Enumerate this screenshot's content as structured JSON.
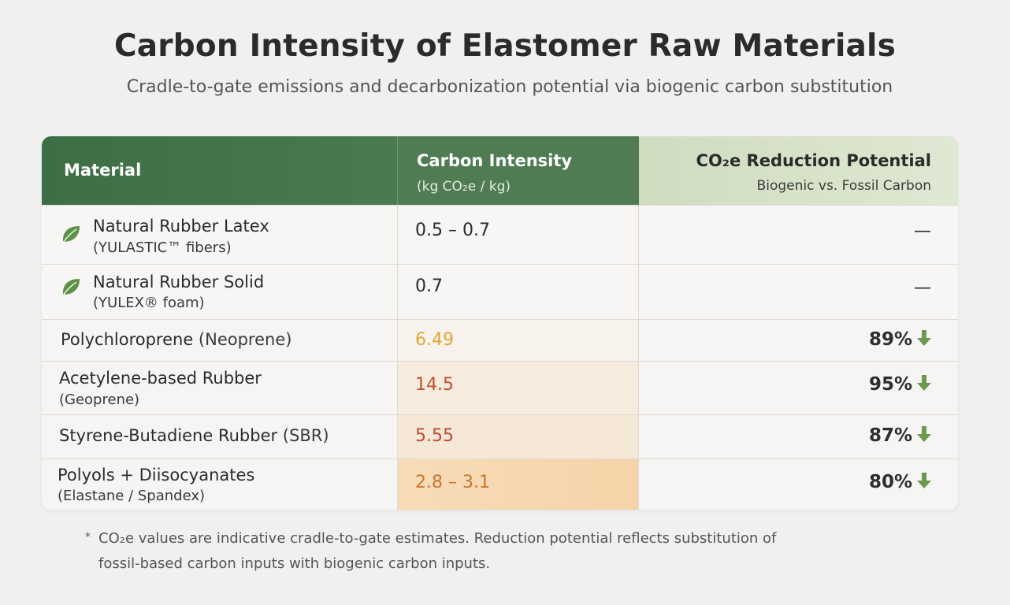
{
  "title": "Carbon Intensity of Elastomer Raw Materials",
  "subtitle": "Cradle-to-gate emissions and decarbonization potential via biogenic carbon substitution",
  "table": {
    "headers": {
      "material": "Material",
      "carbon_intensity": "Carbon Intensity",
      "carbon_intensity_unit": "(kg CO₂e / kg)",
      "reduction": "CO₂e Reduction Potential",
      "reduction_sub": "Biogenic vs. Fossil Carbon"
    },
    "rows": [
      {
        "name": "Natural Rubber Latex",
        "sub": "(YULASTIC™ fibers)",
        "icon": "leaf-icon",
        "carbon_intensity": "0.5 – 0.7",
        "reduction": "—"
      },
      {
        "name": "Natural Rubber Solid",
        "sub": "(YULEX® foam)",
        "icon": "leaf-icon",
        "carbon_intensity": "0.7",
        "reduction": "—"
      },
      {
        "name": "Polychloroprene",
        "name_suffix": " (Neoprene)",
        "carbon_intensity": "6.49",
        "reduction": "89%"
      },
      {
        "name": "Acetylene-based Rubber",
        "sub": "(Geoprene)",
        "carbon_intensity": "14.5",
        "reduction": "95%"
      },
      {
        "name": "Styrene-Butadiene Rubber",
        "name_suffix": " (SBR)",
        "carbon_intensity": "5.55",
        "reduction": "87%"
      },
      {
        "name": "Polyols + Diisocyanates",
        "sub": "(Elastane / Spandex)",
        "carbon_intensity": "2.8 – 3.1",
        "reduction": "80%"
      }
    ]
  },
  "footnote": {
    "marker": "*",
    "line1": "CO₂e values are indicative cradle-to-gate estimates. Reduction potential reflects substitution of",
    "line2": "fossil-based carbon inputs with biogenic carbon inputs."
  },
  "colors": {
    "header_dark_green": "#3d6e45",
    "header_light_green": "#dfe8d2",
    "value_orange": "#e3a43a",
    "value_red": "#c0522f",
    "value_dark_red": "#bb4a36",
    "value_brown_orange": "#c9762e",
    "arrow_green": "#6b9a4e"
  }
}
